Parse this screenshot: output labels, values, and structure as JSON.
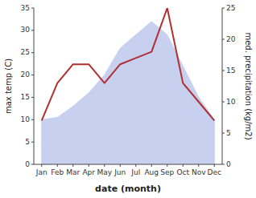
{
  "chart_data": {
    "type": "line",
    "xlabel": "date (month)",
    "ylabel": "max temp (C)",
    "y2label": "med. precipitation (kg/m2)",
    "categories": [
      "Jan",
      "Feb",
      "Mar",
      "Apr",
      "May",
      "Jun",
      "Jul",
      "Aug",
      "Sep",
      "Oct",
      "Nov",
      "Dec"
    ],
    "series": [
      {
        "type": "area",
        "color": "#c8d0f0",
        "values": [
          10,
          10.5,
          13,
          16,
          20,
          26,
          29,
          32,
          29,
          22,
          15,
          10
        ]
      },
      {
        "type": "line",
        "color": "#b03030",
        "axis": "y2",
        "values": [
          7,
          13,
          16,
          16,
          13,
          16,
          17,
          18,
          25,
          13,
          10,
          7
        ]
      }
    ],
    "ylim": [
      0,
      35
    ],
    "yticks": [
      0,
      5,
      10,
      15,
      20,
      25,
      30,
      35
    ],
    "y2lim": [
      0,
      25
    ],
    "y2ticks": [
      0,
      5,
      10,
      15,
      20,
      25
    ],
    "grid": false
  }
}
